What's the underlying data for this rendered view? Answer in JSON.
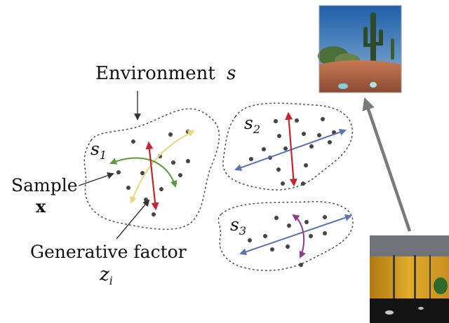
{
  "labels": {
    "environment": "Environment",
    "environment_var": "s",
    "sample": "Sample",
    "sample_var": "x",
    "generative_factor": "Generative factor",
    "factor_var": "z",
    "factor_sub": "i",
    "s1_var": "s",
    "s1_sub": "1",
    "s2_var": "s",
    "s2_sub": "2",
    "s3_var": "s",
    "s3_sub": "3"
  },
  "colors": {
    "red": "#c8242f",
    "green": "#5d9a3b",
    "yellow": "#ecd57a",
    "blue": "#5b74b4",
    "purple": "#8e3a8f",
    "dot": "#444444",
    "outline": "#555555",
    "big_arrow": "#7a7a7a",
    "thin_arrow": "#333333"
  },
  "images": {
    "desert_scene": "desert-thumbnail",
    "indoor_scene": "indoor-maze-thumbnail"
  }
}
